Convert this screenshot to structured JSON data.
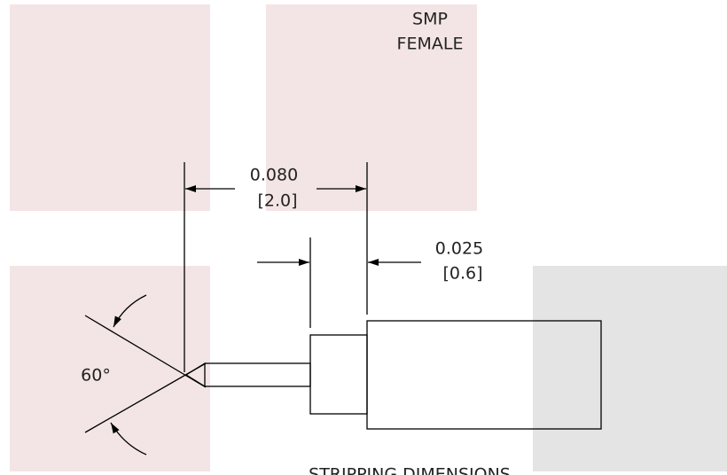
{
  "labels": {
    "connector": [
      "SMP",
      "FEMALE"
    ],
    "overall_length": [
      "0.080",
      "[2.0]"
    ],
    "step_length": [
      "0.025",
      "[0.6]"
    ],
    "angle": "60°",
    "caption": "STRIPPING DIMENSIONS"
  }
}
